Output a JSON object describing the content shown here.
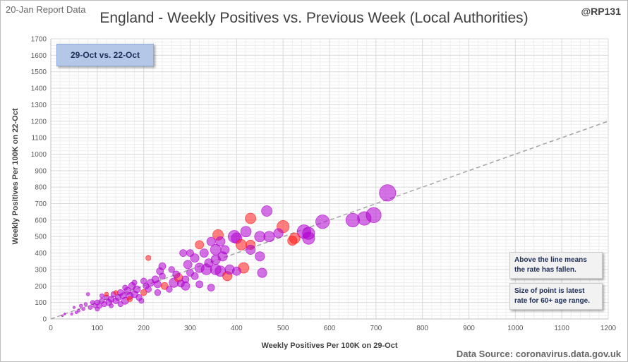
{
  "header": {
    "report_date": "20-Jan Report Data",
    "handle": "@RP131",
    "title": "England - Weekly Positives vs. Previous Week (Local Authorities)"
  },
  "footer": {
    "source": "Data Source: coronavirus.data.gov.uk"
  },
  "annotations": {
    "period": "29-Oct vs. 22-Oct",
    "note_line_1a": "Above the line means",
    "note_line_1b": "the rate has fallen.",
    "note_line_2a": "Size of point is latest",
    "note_line_2b": "rate for 60+ age range."
  },
  "colors": {
    "purple": "#b000d0",
    "red": "#ff1a1a",
    "diagonal": "#a6a6a6",
    "grid": "#d9d9d9"
  },
  "chart_data": {
    "type": "scatter",
    "title": "England - Weekly Positives vs. Previous Week (Local Authorities)",
    "xlabel": "Weekly Positives Per 100K on 29-Oct",
    "ylabel": "Weekly Positives Per 100K on 22-Oct",
    "xlim": [
      0,
      1200
    ],
    "ylim": [
      0,
      1700
    ],
    "x_ticks": [
      0,
      100,
      200,
      300,
      400,
      500,
      600,
      700,
      800,
      900,
      1000,
      1100,
      1200
    ],
    "y_ticks": [
      0,
      100,
      200,
      300,
      400,
      500,
      600,
      700,
      800,
      900,
      1000,
      1100,
      1200,
      1300,
      1400,
      1500,
      1600,
      1700
    ],
    "grid": true,
    "reference_line": "y = x",
    "points": [
      {
        "x": 725,
        "y": 765,
        "s": 70,
        "c": "purple"
      },
      {
        "x": 695,
        "y": 630,
        "s": 64,
        "c": "purple"
      },
      {
        "x": 675,
        "y": 610,
        "s": 58,
        "c": "purple"
      },
      {
        "x": 650,
        "y": 600,
        "s": 58,
        "c": "purple"
      },
      {
        "x": 585,
        "y": 590,
        "s": 58,
        "c": "purple"
      },
      {
        "x": 555,
        "y": 520,
        "s": 52,
        "c": "purple"
      },
      {
        "x": 545,
        "y": 530,
        "s": 58,
        "c": "purple"
      },
      {
        "x": 555,
        "y": 490,
        "s": 52,
        "c": "purple"
      },
      {
        "x": 525,
        "y": 490,
        "s": 45,
        "c": "red"
      },
      {
        "x": 520,
        "y": 475,
        "s": 40,
        "c": "red"
      },
      {
        "x": 500,
        "y": 560,
        "s": 52,
        "c": "red"
      },
      {
        "x": 465,
        "y": 655,
        "s": 45,
        "c": "purple"
      },
      {
        "x": 430,
        "y": 610,
        "s": 45,
        "c": "red"
      },
      {
        "x": 420,
        "y": 530,
        "s": 45,
        "c": "purple"
      },
      {
        "x": 450,
        "y": 500,
        "s": 45,
        "c": "purple"
      },
      {
        "x": 470,
        "y": 500,
        "s": 45,
        "c": "purple"
      },
      {
        "x": 490,
        "y": 520,
        "s": 40,
        "c": "purple"
      },
      {
        "x": 395,
        "y": 500,
        "s": 52,
        "c": "purple"
      },
      {
        "x": 400,
        "y": 490,
        "s": 45,
        "c": "purple"
      },
      {
        "x": 410,
        "y": 450,
        "s": 45,
        "c": "red"
      },
      {
        "x": 430,
        "y": 450,
        "s": 40,
        "c": "red"
      },
      {
        "x": 430,
        "y": 420,
        "s": 40,
        "c": "purple"
      },
      {
        "x": 450,
        "y": 380,
        "s": 40,
        "c": "purple"
      },
      {
        "x": 455,
        "y": 280,
        "s": 40,
        "c": "purple"
      },
      {
        "x": 415,
        "y": 310,
        "s": 45,
        "c": "red"
      },
      {
        "x": 360,
        "y": 510,
        "s": 45,
        "c": "red"
      },
      {
        "x": 365,
        "y": 470,
        "s": 40,
        "c": "purple"
      },
      {
        "x": 345,
        "y": 470,
        "s": 36,
        "c": "purple"
      },
      {
        "x": 355,
        "y": 420,
        "s": 45,
        "c": "purple"
      },
      {
        "x": 370,
        "y": 380,
        "s": 40,
        "c": "purple"
      },
      {
        "x": 320,
        "y": 450,
        "s": 36,
        "c": "red"
      },
      {
        "x": 330,
        "y": 400,
        "s": 36,
        "c": "purple"
      },
      {
        "x": 310,
        "y": 370,
        "s": 36,
        "c": "purple"
      },
      {
        "x": 300,
        "y": 400,
        "s": 30,
        "c": "purple"
      },
      {
        "x": 285,
        "y": 400,
        "s": 30,
        "c": "purple"
      },
      {
        "x": 295,
        "y": 330,
        "s": 36,
        "c": "purple"
      },
      {
        "x": 320,
        "y": 310,
        "s": 40,
        "c": "purple"
      },
      {
        "x": 335,
        "y": 300,
        "s": 45,
        "c": "purple"
      },
      {
        "x": 355,
        "y": 300,
        "s": 45,
        "c": "purple"
      },
      {
        "x": 365,
        "y": 290,
        "s": 45,
        "c": "purple"
      },
      {
        "x": 380,
        "y": 260,
        "s": 40,
        "c": "red"
      },
      {
        "x": 385,
        "y": 300,
        "s": 40,
        "c": "purple"
      },
      {
        "x": 400,
        "y": 290,
        "s": 36,
        "c": "purple"
      },
      {
        "x": 345,
        "y": 190,
        "s": 30,
        "c": "purple"
      },
      {
        "x": 320,
        "y": 210,
        "s": 30,
        "c": "purple"
      },
      {
        "x": 290,
        "y": 200,
        "s": 36,
        "c": "purple"
      },
      {
        "x": 270,
        "y": 270,
        "s": 30,
        "c": "purple"
      },
      {
        "x": 275,
        "y": 250,
        "s": 36,
        "c": "red"
      },
      {
        "x": 265,
        "y": 220,
        "s": 40,
        "c": "purple"
      },
      {
        "x": 280,
        "y": 215,
        "s": 30,
        "c": "purple"
      },
      {
        "x": 290,
        "y": 240,
        "s": 30,
        "c": "purple"
      },
      {
        "x": 240,
        "y": 320,
        "s": 30,
        "c": "purple"
      },
      {
        "x": 235,
        "y": 290,
        "s": 30,
        "c": "purple"
      },
      {
        "x": 225,
        "y": 240,
        "s": 30,
        "c": "purple"
      },
      {
        "x": 215,
        "y": 220,
        "s": 30,
        "c": "purple"
      },
      {
        "x": 230,
        "y": 210,
        "s": 30,
        "c": "purple"
      },
      {
        "x": 245,
        "y": 200,
        "s": 30,
        "c": "red"
      },
      {
        "x": 210,
        "y": 370,
        "s": 22,
        "c": "red"
      },
      {
        "x": 200,
        "y": 230,
        "s": 26,
        "c": "purple"
      },
      {
        "x": 210,
        "y": 180,
        "s": 26,
        "c": "purple"
      },
      {
        "x": 200,
        "y": 160,
        "s": 26,
        "c": "red"
      },
      {
        "x": 185,
        "y": 180,
        "s": 30,
        "c": "purple"
      },
      {
        "x": 175,
        "y": 200,
        "s": 30,
        "c": "purple"
      },
      {
        "x": 180,
        "y": 150,
        "s": 30,
        "c": "purple"
      },
      {
        "x": 170,
        "y": 140,
        "s": 30,
        "c": "purple"
      },
      {
        "x": 165,
        "y": 170,
        "s": 30,
        "c": "purple"
      },
      {
        "x": 160,
        "y": 110,
        "s": 30,
        "c": "purple"
      },
      {
        "x": 155,
        "y": 140,
        "s": 26,
        "c": "purple"
      },
      {
        "x": 150,
        "y": 160,
        "s": 26,
        "c": "purple"
      },
      {
        "x": 145,
        "y": 130,
        "s": 26,
        "c": "purple"
      },
      {
        "x": 140,
        "y": 110,
        "s": 26,
        "c": "purple"
      },
      {
        "x": 135,
        "y": 150,
        "s": 22,
        "c": "purple"
      },
      {
        "x": 130,
        "y": 120,
        "s": 26,
        "c": "purple"
      },
      {
        "x": 125,
        "y": 100,
        "s": 26,
        "c": "purple"
      },
      {
        "x": 120,
        "y": 130,
        "s": 22,
        "c": "purple"
      },
      {
        "x": 115,
        "y": 90,
        "s": 22,
        "c": "purple"
      },
      {
        "x": 110,
        "y": 110,
        "s": 22,
        "c": "purple"
      },
      {
        "x": 105,
        "y": 80,
        "s": 22,
        "c": "purple"
      },
      {
        "x": 100,
        "y": 100,
        "s": 22,
        "c": "purple"
      },
      {
        "x": 95,
        "y": 80,
        "s": 18,
        "c": "purple"
      },
      {
        "x": 90,
        "y": 100,
        "s": 18,
        "c": "purple"
      },
      {
        "x": 85,
        "y": 70,
        "s": 18,
        "c": "purple"
      },
      {
        "x": 80,
        "y": 150,
        "s": 14,
        "c": "purple"
      },
      {
        "x": 75,
        "y": 90,
        "s": 14,
        "c": "purple"
      },
      {
        "x": 70,
        "y": 60,
        "s": 14,
        "c": "purple"
      },
      {
        "x": 65,
        "y": 80,
        "s": 14,
        "c": "purple"
      },
      {
        "x": 60,
        "y": 50,
        "s": 12,
        "c": "purple"
      },
      {
        "x": 55,
        "y": 40,
        "s": 12,
        "c": "purple"
      },
      {
        "x": 50,
        "y": 70,
        "s": 10,
        "c": "purple"
      },
      {
        "x": 45,
        "y": 30,
        "s": 10,
        "c": "purple"
      },
      {
        "x": 30,
        "y": 30,
        "s": 8,
        "c": "purple"
      },
      {
        "x": 25,
        "y": 20,
        "s": 8,
        "c": "purple"
      },
      {
        "x": 140,
        "y": 160,
        "s": 18,
        "c": "red"
      },
      {
        "x": 120,
        "y": 150,
        "s": 18,
        "c": "red"
      },
      {
        "x": 170,
        "y": 120,
        "s": 22,
        "c": "red"
      },
      {
        "x": 190,
        "y": 130,
        "s": 26,
        "c": "purple"
      },
      {
        "x": 230,
        "y": 160,
        "s": 26,
        "c": "purple"
      },
      {
        "x": 255,
        "y": 180,
        "s": 26,
        "c": "purple"
      },
      {
        "x": 260,
        "y": 300,
        "s": 26,
        "c": "purple"
      },
      {
        "x": 300,
        "y": 280,
        "s": 30,
        "c": "purple"
      },
      {
        "x": 310,
        "y": 260,
        "s": 30,
        "c": "purple"
      },
      {
        "x": 340,
        "y": 340,
        "s": 36,
        "c": "purple"
      },
      {
        "x": 240,
        "y": 260,
        "s": 26,
        "c": "purple"
      },
      {
        "x": 205,
        "y": 200,
        "s": 26,
        "c": "purple"
      },
      {
        "x": 195,
        "y": 110,
        "s": 22,
        "c": "purple"
      },
      {
        "x": 150,
        "y": 90,
        "s": 22,
        "c": "purple"
      },
      {
        "x": 130,
        "y": 80,
        "s": 18,
        "c": "purple"
      },
      {
        "x": 180,
        "y": 220,
        "s": 22,
        "c": "purple"
      },
      {
        "x": 160,
        "y": 190,
        "s": 22,
        "c": "purple"
      },
      {
        "x": 110,
        "y": 140,
        "s": 18,
        "c": "purple"
      },
      {
        "x": 100,
        "y": 60,
        "s": 18,
        "c": "purple"
      },
      {
        "x": 355,
        "y": 360,
        "s": 40,
        "c": "purple"
      },
      {
        "x": 375,
        "y": 420,
        "s": 36,
        "c": "purple"
      }
    ]
  }
}
